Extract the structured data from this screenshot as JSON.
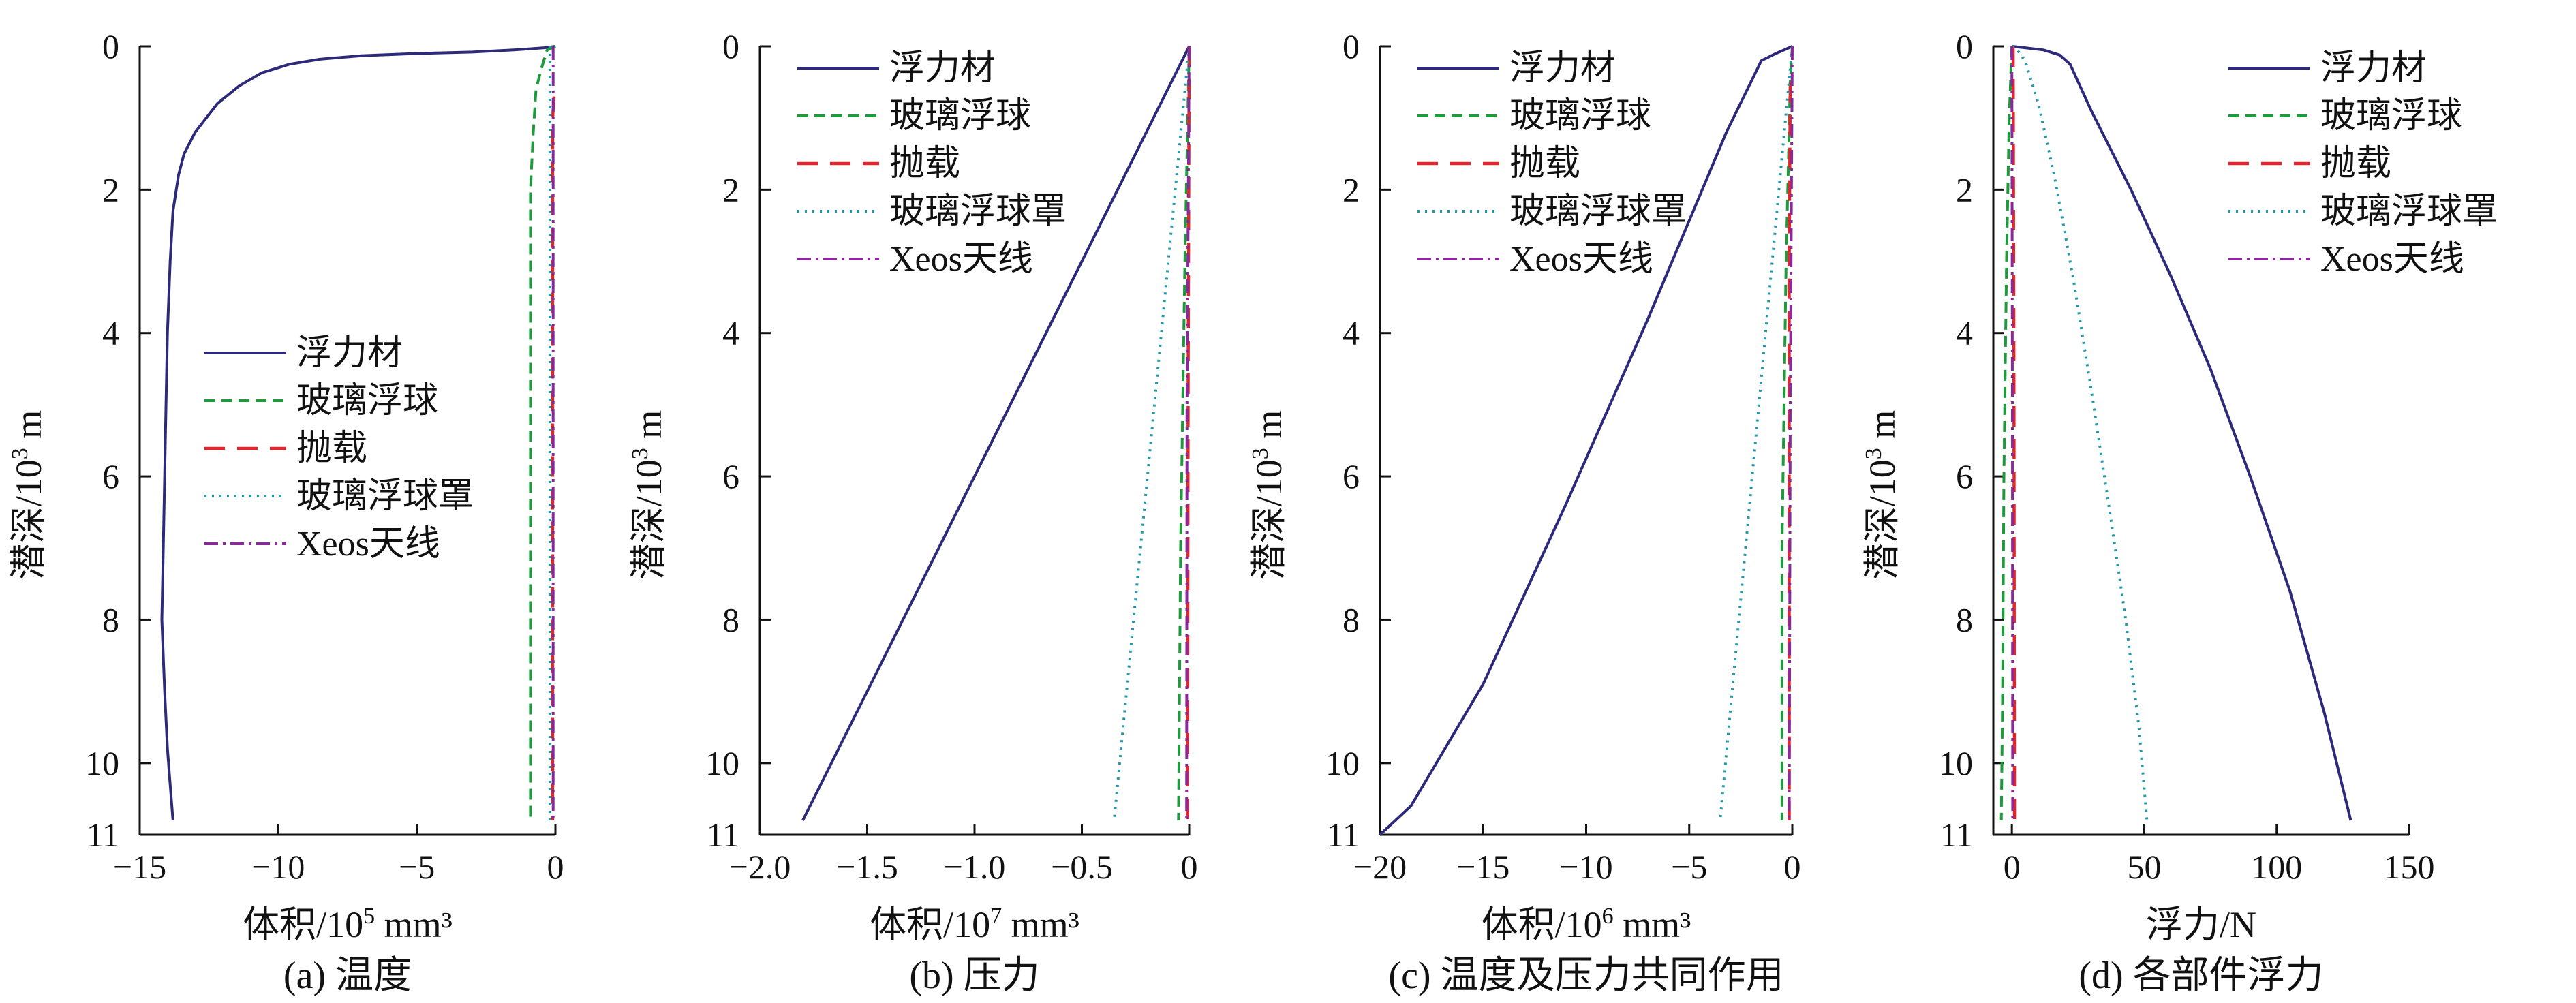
{
  "colors": {
    "foam": "#2e2a7a",
    "glass_ball": "#1e9a3c",
    "ballast": "#e3262b",
    "glass_cover": "#1f9aa8",
    "antenna": "#8a2a9a",
    "axis": "#111111"
  },
  "legend_labels": [
    "浮力材",
    "玻璃浮球",
    "抛载",
    "玻璃浮球罩",
    "Xeos天线"
  ],
  "chart_data": [
    {
      "type": "line",
      "caption": "(a) 温度",
      "xlabel_prefix": "体积/10",
      "xlabel_exp": "5",
      "xlabel_suffix": " mm³",
      "ylabel_prefix": "潜深/10",
      "ylabel_exp": "3",
      "ylabel_suffix": " m",
      "xlim": [
        -15,
        0
      ],
      "ylim": [
        0,
        11
      ],
      "xticks": [
        -15,
        -10,
        -5,
        0
      ],
      "xtick_labels": [
        "−15",
        "−10",
        "−5",
        "0"
      ],
      "yticks": [
        0,
        2,
        4,
        6,
        8,
        10,
        11
      ],
      "ytick_labels": [
        "0",
        "2",
        "4",
        "6",
        "8",
        "10",
        "11"
      ],
      "legend_position": "center",
      "series": [
        {
          "name": "浮力材",
          "key": "foam",
          "x": [
            0,
            -0.4,
            -1.5,
            -3,
            -5,
            -7,
            -8.5,
            -9.6,
            -10.6,
            -11.4,
            -12.2,
            -13.0,
            -13.4,
            -13.6,
            -13.8,
            -13.9,
            -14.0,
            -14.05,
            -14.1,
            -14.15,
            -14.2,
            -14.1,
            -14.0,
            -13.9,
            -13.8
          ],
          "y": [
            0,
            0.02,
            0.05,
            0.08,
            0.1,
            0.13,
            0.18,
            0.25,
            0.37,
            0.55,
            0.8,
            1.2,
            1.5,
            1.8,
            2.3,
            3.0,
            4.0,
            5.0,
            6.0,
            7.0,
            8.0,
            9.0,
            9.8,
            10.3,
            10.8
          ]
        },
        {
          "name": "玻璃浮球",
          "key": "glass_ball",
          "x": [
            0,
            -0.3,
            -0.5,
            -0.7,
            -0.8,
            -0.9,
            -0.9,
            -0.9
          ],
          "y": [
            0,
            0.05,
            0.3,
            0.6,
            1.2,
            2.0,
            6.0,
            10.8
          ]
        },
        {
          "name": "抛载",
          "key": "ballast",
          "x": [
            -0.05,
            -0.1,
            -0.1,
            -0.1
          ],
          "y": [
            0.7,
            1.0,
            6.0,
            10.8
          ]
        },
        {
          "name": "玻璃浮球罩",
          "key": "glass_cover",
          "x": [
            -0.2,
            -0.2,
            -0.2
          ],
          "y": [
            0,
            6.0,
            10.8
          ]
        },
        {
          "name": "Xeos天线",
          "key": "antenna",
          "x": [
            -0.08,
            -0.08,
            -0.08
          ],
          "y": [
            0,
            6.0,
            10.8
          ]
        }
      ]
    },
    {
      "type": "line",
      "caption": "(b) 压力",
      "xlabel_prefix": "体积/10",
      "xlabel_exp": "7",
      "xlabel_suffix": " mm³",
      "ylabel_prefix": "潜深/10",
      "ylabel_exp": "3",
      "ylabel_suffix": " m",
      "xlim": [
        -2.0,
        0
      ],
      "ylim": [
        0,
        11
      ],
      "xticks": [
        -2.0,
        -1.5,
        -1.0,
        -0.5,
        0
      ],
      "xtick_labels": [
        "−2.0",
        "−1.5",
        "−1.0",
        "−0.5",
        "0"
      ],
      "yticks": [
        0,
        2,
        4,
        6,
        8,
        10,
        11
      ],
      "ytick_labels": [
        "0",
        "2",
        "4",
        "6",
        "8",
        "10",
        "11"
      ],
      "legend_position": "top-left",
      "series": [
        {
          "name": "浮力材",
          "key": "foam",
          "x": [
            0,
            -1.8
          ],
          "y": [
            0,
            10.8
          ]
        },
        {
          "name": "玻璃浮球",
          "key": "glass_ball",
          "x": [
            0,
            -0.02,
            -0.04,
            -0.05
          ],
          "y": [
            0,
            3.0,
            7.0,
            10.8
          ]
        },
        {
          "name": "抛载",
          "key": "ballast",
          "x": [
            0,
            -0.005,
            -0.008
          ],
          "y": [
            0,
            5.0,
            10.8
          ]
        },
        {
          "name": "玻璃浮球罩",
          "key": "glass_cover",
          "x": [
            0,
            -0.35
          ],
          "y": [
            0,
            10.8
          ]
        },
        {
          "name": "Xeos天线",
          "key": "antenna",
          "x": [
            0,
            -0.01,
            -0.012
          ],
          "y": [
            0,
            5.0,
            10.8
          ]
        }
      ]
    },
    {
      "type": "line",
      "caption": "(c) 温度及压力共同作用",
      "xlabel_prefix": "体积/10",
      "xlabel_exp": "6",
      "xlabel_suffix": " mm³",
      "ylabel_prefix": "潜深/10",
      "ylabel_exp": "3",
      "ylabel_suffix": " m",
      "xlim": [
        -20,
        0
      ],
      "ylim": [
        0,
        11
      ],
      "xticks": [
        -20,
        -15,
        -10,
        -5,
        0
      ],
      "xtick_labels": [
        "−20",
        "−15",
        "−10",
        "−5",
        "0"
      ],
      "yticks": [
        0,
        2,
        4,
        6,
        8,
        10,
        11
      ],
      "ytick_labels": [
        "0",
        "2",
        "4",
        "6",
        "8",
        "10",
        "11"
      ],
      "legend_position": "top-left",
      "series": [
        {
          "name": "浮力材",
          "key": "foam",
          "x": [
            0,
            -0.4,
            -0.8,
            -1.5,
            -3.2,
            -7.0,
            -11.0,
            -15.0,
            -18.5,
            -20.0
          ],
          "y": [
            0,
            0.05,
            0.1,
            0.2,
            1.2,
            3.8,
            6.4,
            8.9,
            10.6,
            11.0
          ]
        },
        {
          "name": "玻璃浮球",
          "key": "glass_ball",
          "x": [
            0,
            -0.1,
            -0.3,
            -0.5,
            -0.5
          ],
          "y": [
            0,
            0.5,
            3.0,
            7.0,
            10.8
          ]
        },
        {
          "name": "抛载",
          "key": "ballast",
          "x": [
            -0.1,
            -0.15,
            -0.15
          ],
          "y": [
            0.5,
            3.0,
            10.8
          ]
        },
        {
          "name": "玻璃浮球罩",
          "key": "glass_cover",
          "x": [
            0,
            -3.5
          ],
          "y": [
            0,
            10.8
          ]
        },
        {
          "name": "Xeos天线",
          "key": "antenna",
          "x": [
            0,
            -0.1,
            -0.15
          ],
          "y": [
            0,
            5.0,
            10.8
          ]
        }
      ]
    },
    {
      "type": "line",
      "caption": "(d) 各部件浮力",
      "xlabel_prefix": "浮力/N",
      "xlabel_exp": "",
      "xlabel_suffix": "",
      "ylabel_prefix": "潜深/10",
      "ylabel_exp": "3",
      "ylabel_suffix": " m",
      "xlim": [
        -7,
        150
      ],
      "ylim": [
        0,
        11
      ],
      "xticks": [
        0,
        50,
        100,
        150
      ],
      "xtick_labels": [
        "0",
        "50",
        "100",
        "150"
      ],
      "yticks": [
        0,
        2,
        4,
        6,
        8,
        10,
        11
      ],
      "ytick_labels": [
        "0",
        "2",
        "4",
        "6",
        "8",
        "10",
        "11"
      ],
      "legend_position": "top-right",
      "series": [
        {
          "name": "浮力材",
          "key": "foam",
          "x": [
            0,
            5,
            12,
            18,
            22,
            30,
            45,
            60,
            75,
            90,
            105,
            118,
            128
          ],
          "y": [
            0,
            0.02,
            0.05,
            0.12,
            0.25,
            0.9,
            2.0,
            3.2,
            4.5,
            6.0,
            7.6,
            9.3,
            10.8
          ]
        },
        {
          "name": "玻璃浮球",
          "key": "glass_ball",
          "x": [
            0,
            -1,
            -2,
            -3,
            -3.5,
            -4
          ],
          "y": [
            0,
            1.0,
            3.0,
            6.0,
            9.0,
            10.8
          ]
        },
        {
          "name": "抛载",
          "key": "ballast",
          "x": [
            0.5,
            0.8,
            1.0
          ],
          "y": [
            0,
            5.0,
            10.8
          ]
        },
        {
          "name": "玻璃浮球罩",
          "key": "glass_cover",
          "x": [
            0,
            2,
            5,
            10,
            16,
            23,
            30,
            37,
            43,
            48,
            51
          ],
          "y": [
            0,
            0.05,
            0.2,
            0.8,
            1.8,
            3.2,
            4.8,
            6.5,
            8.0,
            9.5,
            10.8
          ]
        },
        {
          "name": "Xeos天线",
          "key": "antenna",
          "x": [
            0,
            0.2,
            0.3
          ],
          "y": [
            0,
            5.0,
            10.8
          ]
        }
      ]
    }
  ]
}
